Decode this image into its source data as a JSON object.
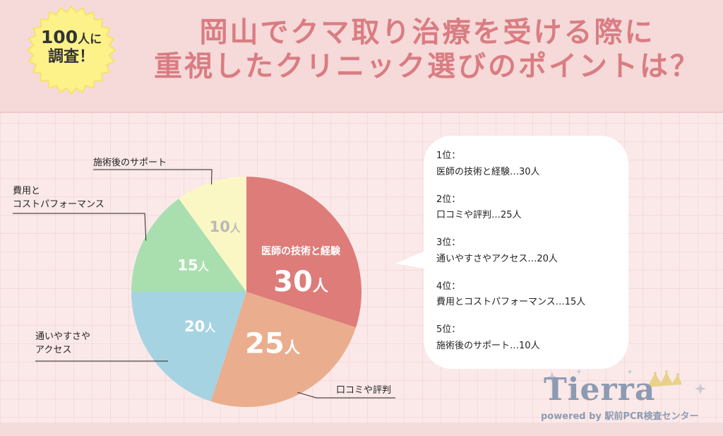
{
  "badge": {
    "count": "100",
    "count_suffix": "人に",
    "line2": "調査！"
  },
  "title": {
    "line1": "岡山でクマ取り治療を受ける際に",
    "line2": "重視したクリニック選びのポイントは？"
  },
  "chart_data": {
    "type": "pie",
    "title": "岡山でクマ取り治療を受ける際に重視したクリニック選びのポイントは？",
    "unit": "人",
    "total": 100,
    "slices": [
      {
        "label": "医師の技術と経験",
        "value": 30,
        "value_text": "30",
        "color": "#de7c7a",
        "text_color": "#ffffff"
      },
      {
        "label": "口コミや評判",
        "value": 25,
        "value_text": "25",
        "color": "#eaae8e",
        "text_color": "#ffffff"
      },
      {
        "label": "通いやすさやアクセス",
        "value": 20,
        "value_text": "20",
        "color": "#a6d3e2",
        "text_color": "#ffffff"
      },
      {
        "label": "費用とコストパフォーマンス",
        "value": 15,
        "value_text": "15",
        "color": "#a9dfae",
        "text_color": "#ffffff"
      },
      {
        "label": "施術後のサポート",
        "value": 10,
        "value_text": "10",
        "color": "#fbf7c5",
        "text_color": "#b9b9b9"
      }
    ]
  },
  "external_labels": {
    "support": "施術後のサポート",
    "cost_line1": "費用と",
    "cost_line2": "コストパフォーマンス",
    "access_line1": "通いやすさや",
    "access_line2": "アクセス",
    "reviews": "口コミや評判"
  },
  "ranking": [
    {
      "rank": "1位：",
      "text": "医師の技術と経験…30人"
    },
    {
      "rank": "2位：",
      "text": "口コミや評判…25人"
    },
    {
      "rank": "3位：",
      "text": "通いやすさやアクセス…20人"
    },
    {
      "rank": "4位：",
      "text": "費用とコストパフォーマンス…15人"
    },
    {
      "rank": "5位：",
      "text": "施術後のサポート…10人"
    }
  ],
  "logo": {
    "name": "Tierra",
    "tagline": "powered by 駅前PCR検査センター"
  },
  "colors": {
    "title": "#d97d82",
    "header_bg": "#f6d9d9",
    "badge": "#fdf28a",
    "leader": "#222222"
  }
}
